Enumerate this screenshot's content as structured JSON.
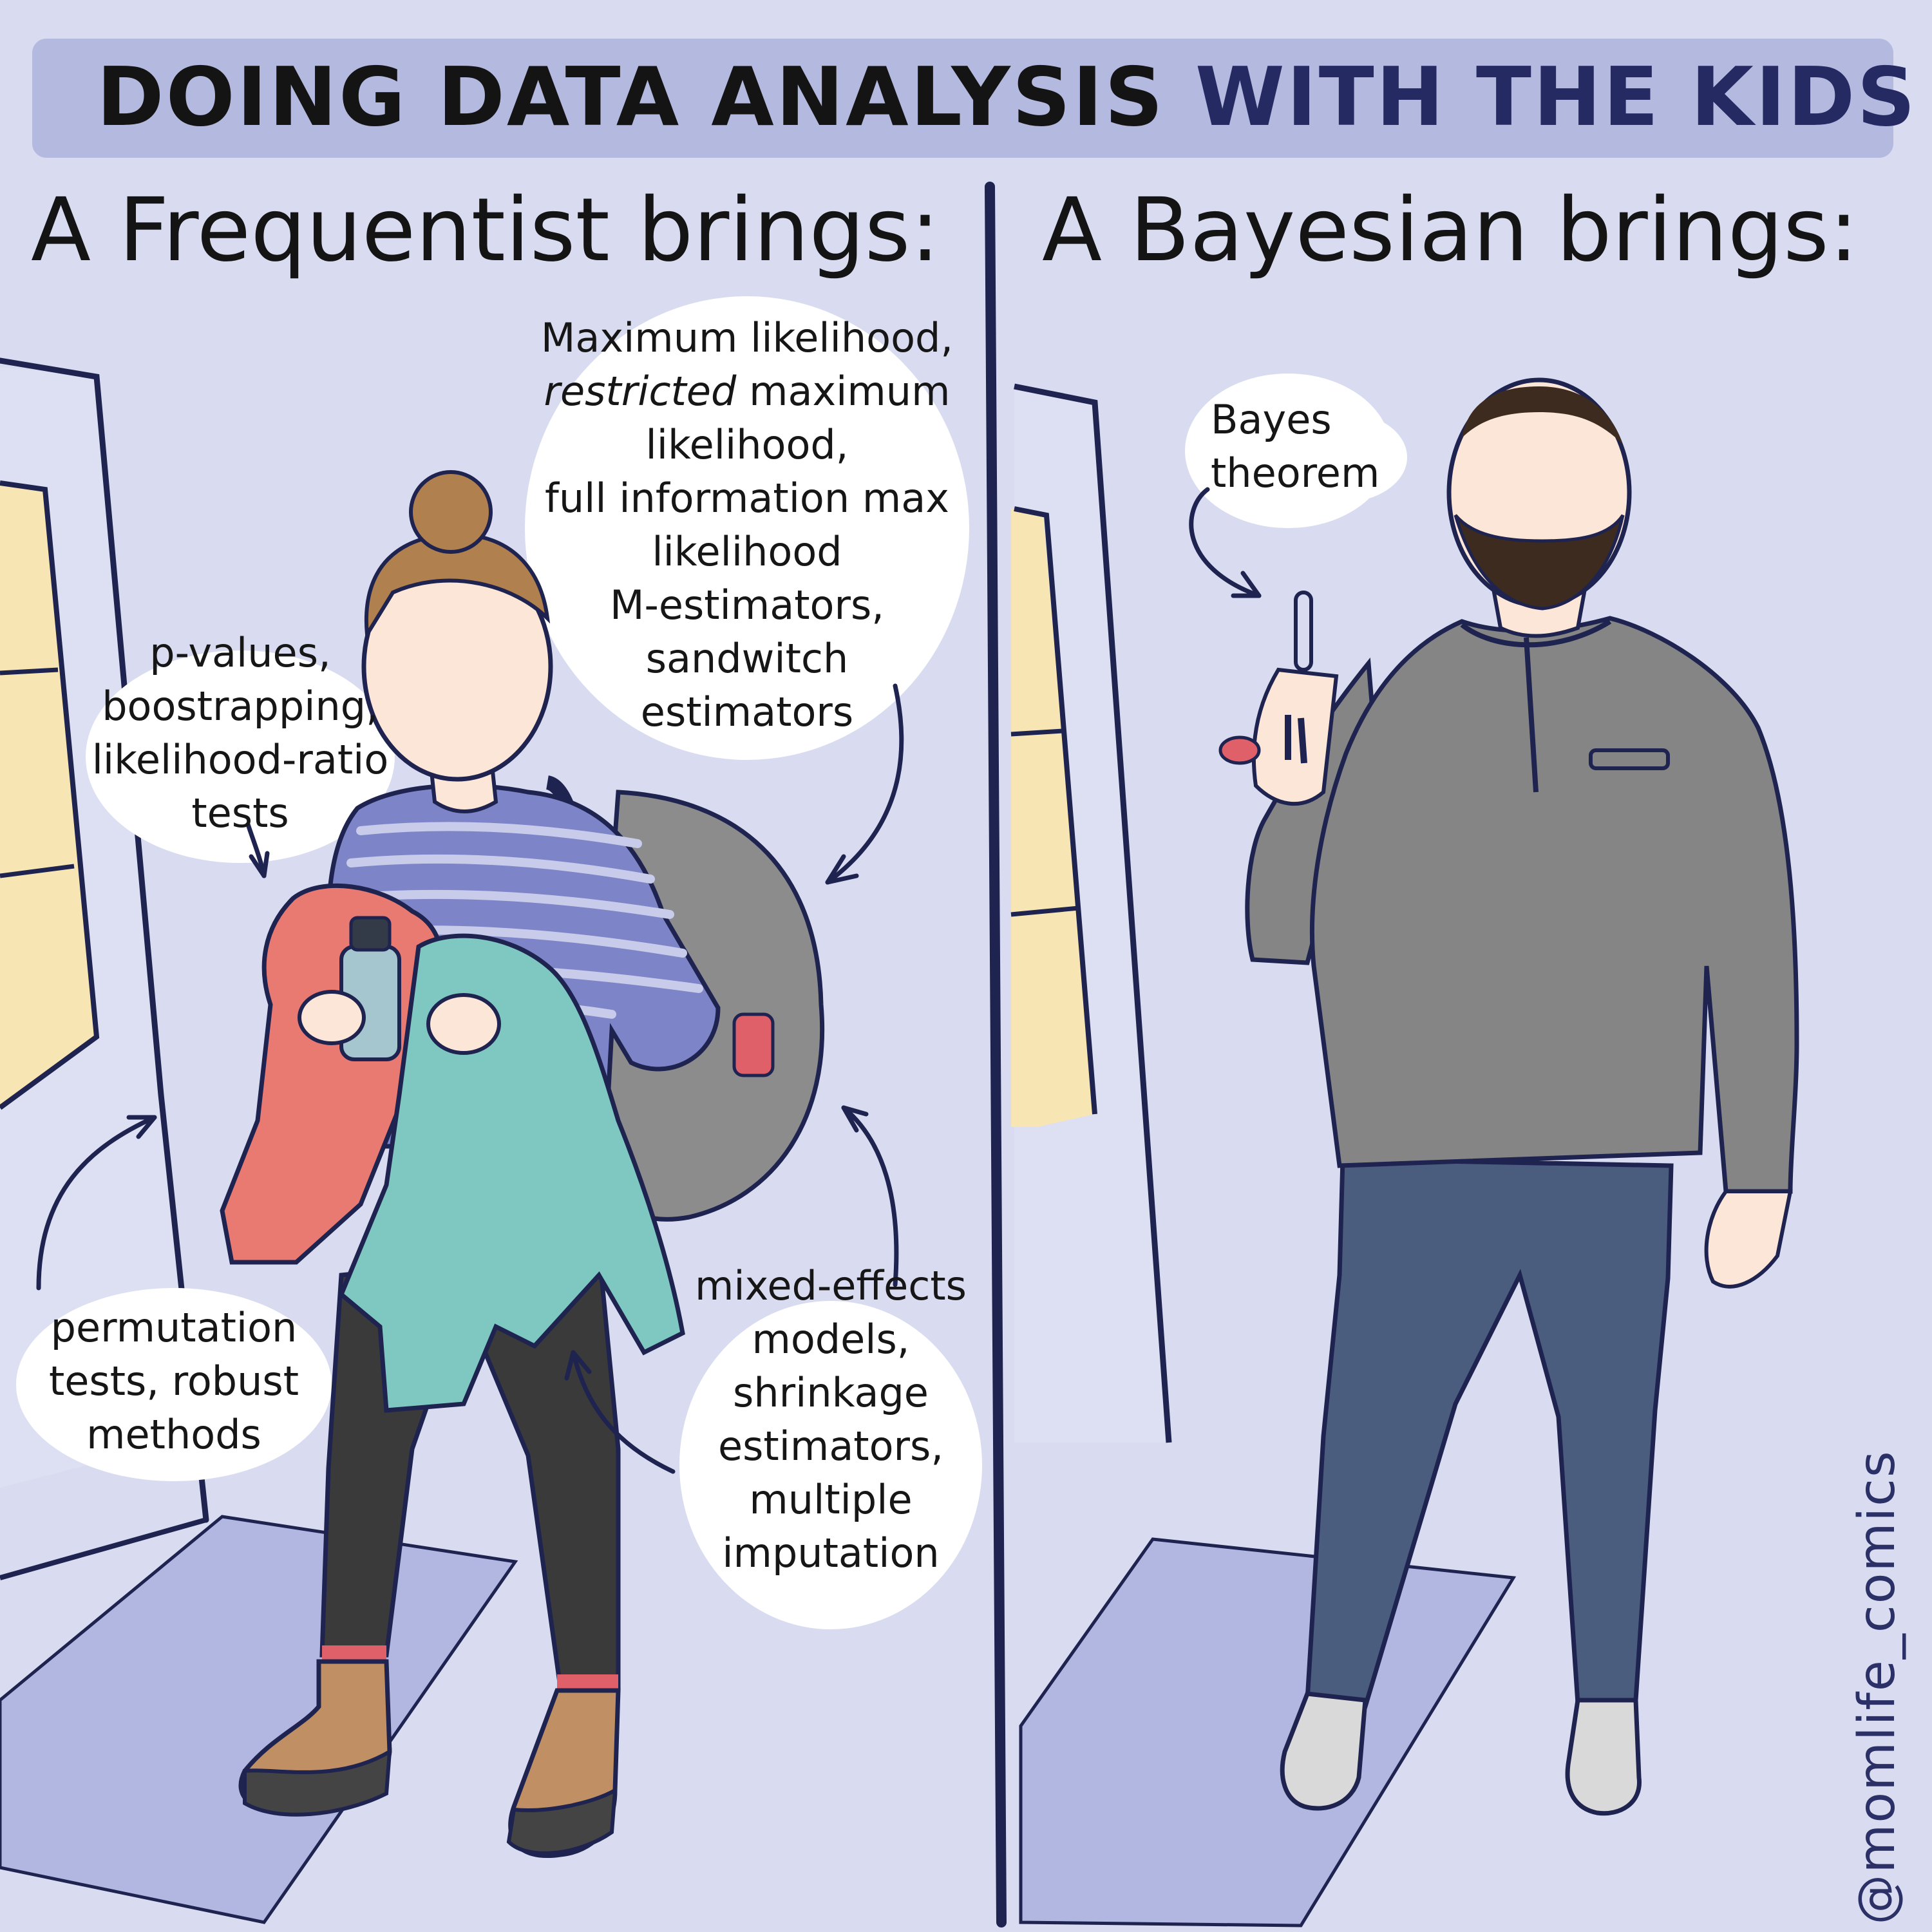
{
  "title": {
    "part1": "DOING DATA ANALYSIS",
    "part2": "WITH THE KIDS"
  },
  "panels": {
    "left": {
      "heading": "A Frequentist brings:",
      "bubbles": {
        "mle": {
          "italic": "restricted",
          "lines": [
            "Maximum likelihood,",
            "maximum",
            "likelihood,",
            "full information max",
            "likelihood",
            "M-estimators,",
            "sandwitch",
            "estimators"
          ]
        },
        "pvalues": {
          "lines": [
            "p-values,",
            "boostrapping,",
            "likelihood-ratio",
            "tests"
          ]
        },
        "permutation": {
          "lines": [
            "permutation",
            "tests, robust",
            "methods"
          ]
        },
        "mixed": {
          "lines": [
            "mixed-effects",
            "models,",
            "shrinkage",
            "estimators,",
            "multiple",
            "imputation"
          ]
        }
      }
    },
    "right": {
      "heading": "A Bayesian brings:",
      "bubbles": {
        "bayes": {
          "lines": [
            "Bayes",
            "theorem"
          ]
        }
      }
    }
  },
  "signature": "@momlife_comics",
  "colors": {
    "background": "#d9dcf0",
    "title_band": "#b3b9df",
    "ink": "#1e2350",
    "window": "#f8e5b4",
    "mat": "#b1b7e0",
    "sweater_stripe": "#7d85c8",
    "coat": "#e87a72",
    "jacket": "#7fc7c1",
    "backpack": "#8c8c8c",
    "leggings": "#3a3a3a",
    "boots": "#c09064",
    "skin": "#fbe6d8",
    "hair": "#b0804e",
    "henley": "#858585",
    "jeans": "#4a5d7e",
    "shoes": "#d9d9d9"
  }
}
